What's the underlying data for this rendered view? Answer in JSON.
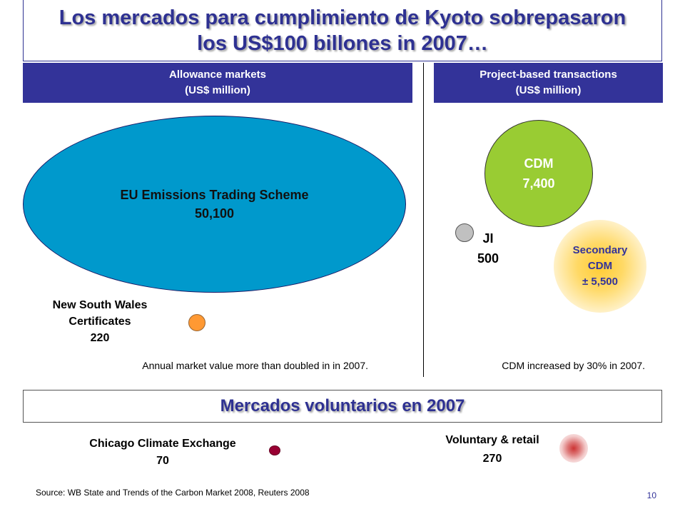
{
  "title": {
    "line1": "Los mercados para cumplimiento de Kyoto sobrepasaron",
    "line2": "los  US$100 billones in 2007…"
  },
  "allowance": {
    "header_line1": "Allowance markets",
    "header_line2": "(US$ million)",
    "eu": {
      "name": "EU Emissions Trading Scheme",
      "value": "50,100"
    },
    "nsw": {
      "line1": "New South Wales",
      "line2": "Certificates",
      "value": "220"
    },
    "note": "Annual market value more than doubled in in 2007."
  },
  "project": {
    "header_line1": "Project-based transactions",
    "header_line2": "(US$ million)",
    "cdm": {
      "name": "CDM",
      "value": "7,400"
    },
    "ji": {
      "name": "JI",
      "value": "500"
    },
    "secondary": {
      "line1": "Secondary",
      "line2": "CDM",
      "value": "± 5,500"
    },
    "note": "CDM increased by 30% in 2007."
  },
  "voluntary": {
    "header": "Mercados voluntarios en 2007",
    "ccx": {
      "name": "Chicago Climate Exchange",
      "value": "70"
    },
    "retail": {
      "name": "Voluntary & retail",
      "value": "270"
    }
  },
  "source": "Source: WB State and Trends of the Carbon Market 2008, Reuters 2008",
  "page_number": "10",
  "colors": {
    "brand_blue": "#333399",
    "eu_bubble": "#0099cc",
    "cdm_bubble": "#99cc33",
    "ji_bubble": "#c0c0c0",
    "nsw_bubble": "#ff9933",
    "secondary_glow": "#ffcc33",
    "ccx_bubble": "#990033",
    "retail_bubble": "#cc3333"
  }
}
